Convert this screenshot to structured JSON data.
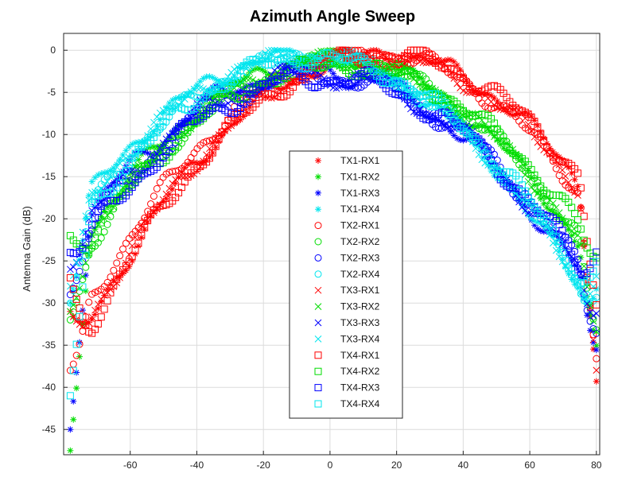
{
  "chart_data": {
    "type": "scatter",
    "title": "Azimuth Angle Sweep",
    "xlabel": "",
    "ylabel": "Antenna Gain (dB)",
    "xlim": [
      -80,
      81
    ],
    "ylim": [
      -48,
      2
    ],
    "xticks": [
      -60,
      -40,
      -20,
      0,
      20,
      40,
      60,
      80
    ],
    "yticks": [
      0,
      -5,
      -10,
      -15,
      -20,
      -25,
      -30,
      -35,
      -40,
      -45
    ],
    "grid": true,
    "legend_position": "center",
    "series": [
      {
        "name": "TX1-RX1",
        "color": "#ff0000",
        "marker": "asterisk",
        "peak_x": 15,
        "peak_y": -0.5,
        "width": 58,
        "ripple": 0.8,
        "start_y": -31,
        "end_y": -31
      },
      {
        "name": "TX1-RX2",
        "color": "#00dd00",
        "marker": "asterisk",
        "peak_x": 0,
        "peak_y": -1.0,
        "width": 60,
        "ripple": 0.7,
        "start_y": -47.5,
        "end_y": -31
      },
      {
        "name": "TX1-RX3",
        "color": "#0000ff",
        "marker": "asterisk",
        "peak_x": -5,
        "peak_y": -2.5,
        "width": 61,
        "ripple": 1.0,
        "start_y": -45,
        "end_y": -33
      },
      {
        "name": "TX1-RX4",
        "color": "#00e5ee",
        "marker": "asterisk",
        "peak_x": -8,
        "peak_y": -0.5,
        "width": 59,
        "ripple": 0.7,
        "start_y": -30,
        "end_y": -30
      },
      {
        "name": "TX2-RX1",
        "color": "#ff0000",
        "marker": "circle",
        "peak_x": 12,
        "peak_y": -0.3,
        "width": 58,
        "ripple": 0.8,
        "start_y": -38,
        "end_y": -30
      },
      {
        "name": "TX2-RX2",
        "color": "#00dd00",
        "marker": "circle",
        "peak_x": 2,
        "peak_y": -1.5,
        "width": 60,
        "ripple": 0.7,
        "start_y": -32,
        "end_y": -30
      },
      {
        "name": "TX2-RX3",
        "color": "#0000ff",
        "marker": "circle",
        "peak_x": -3,
        "peak_y": -3.0,
        "width": 61,
        "ripple": 1.0,
        "start_y": -29,
        "end_y": -32
      },
      {
        "name": "TX2-RX4",
        "color": "#00e5ee",
        "marker": "circle",
        "peak_x": -6,
        "peak_y": -0.8,
        "width": 59,
        "ripple": 0.7,
        "start_y": -30,
        "end_y": -30
      },
      {
        "name": "TX3-RX1",
        "color": "#ff0000",
        "marker": "x",
        "peak_x": 14,
        "peak_y": -0.8,
        "width": 58,
        "ripple": 0.8,
        "start_y": -31,
        "end_y": -30
      },
      {
        "name": "TX3-RX2",
        "color": "#00dd00",
        "marker": "x",
        "peak_x": 1,
        "peak_y": -1.2,
        "width": 60,
        "ripple": 0.7,
        "start_y": -31,
        "end_y": -30
      },
      {
        "name": "TX3-RX3",
        "color": "#0000ff",
        "marker": "x",
        "peak_x": -4,
        "peak_y": -2.8,
        "width": 61,
        "ripple": 1.0,
        "start_y": -26,
        "end_y": -31
      },
      {
        "name": "TX3-RX4",
        "color": "#00e5ee",
        "marker": "x",
        "peak_x": -7,
        "peak_y": -0.6,
        "width": 59,
        "ripple": 0.7,
        "start_y": -28,
        "end_y": -29
      },
      {
        "name": "TX4-RX1",
        "color": "#ff0000",
        "marker": "square",
        "peak_x": 16,
        "peak_y": -0.4,
        "width": 58,
        "ripple": 0.8,
        "start_y": -27,
        "end_y": -25
      },
      {
        "name": "TX4-RX2",
        "color": "#00dd00",
        "marker": "square",
        "peak_x": 3,
        "peak_y": -1.8,
        "width": 62,
        "ripple": 0.7,
        "start_y": -22,
        "end_y": -24
      },
      {
        "name": "TX4-RX3",
        "color": "#0000ff",
        "marker": "square",
        "peak_x": -2,
        "peak_y": -3.2,
        "width": 61,
        "ripple": 1.0,
        "start_y": -24,
        "end_y": -26
      },
      {
        "name": "TX4-RX4",
        "color": "#00e5ee",
        "marker": "square",
        "peak_x": -5,
        "peak_y": -0.9,
        "width": 59,
        "ripple": 0.7,
        "start_y": -41,
        "end_y": -27
      }
    ]
  }
}
